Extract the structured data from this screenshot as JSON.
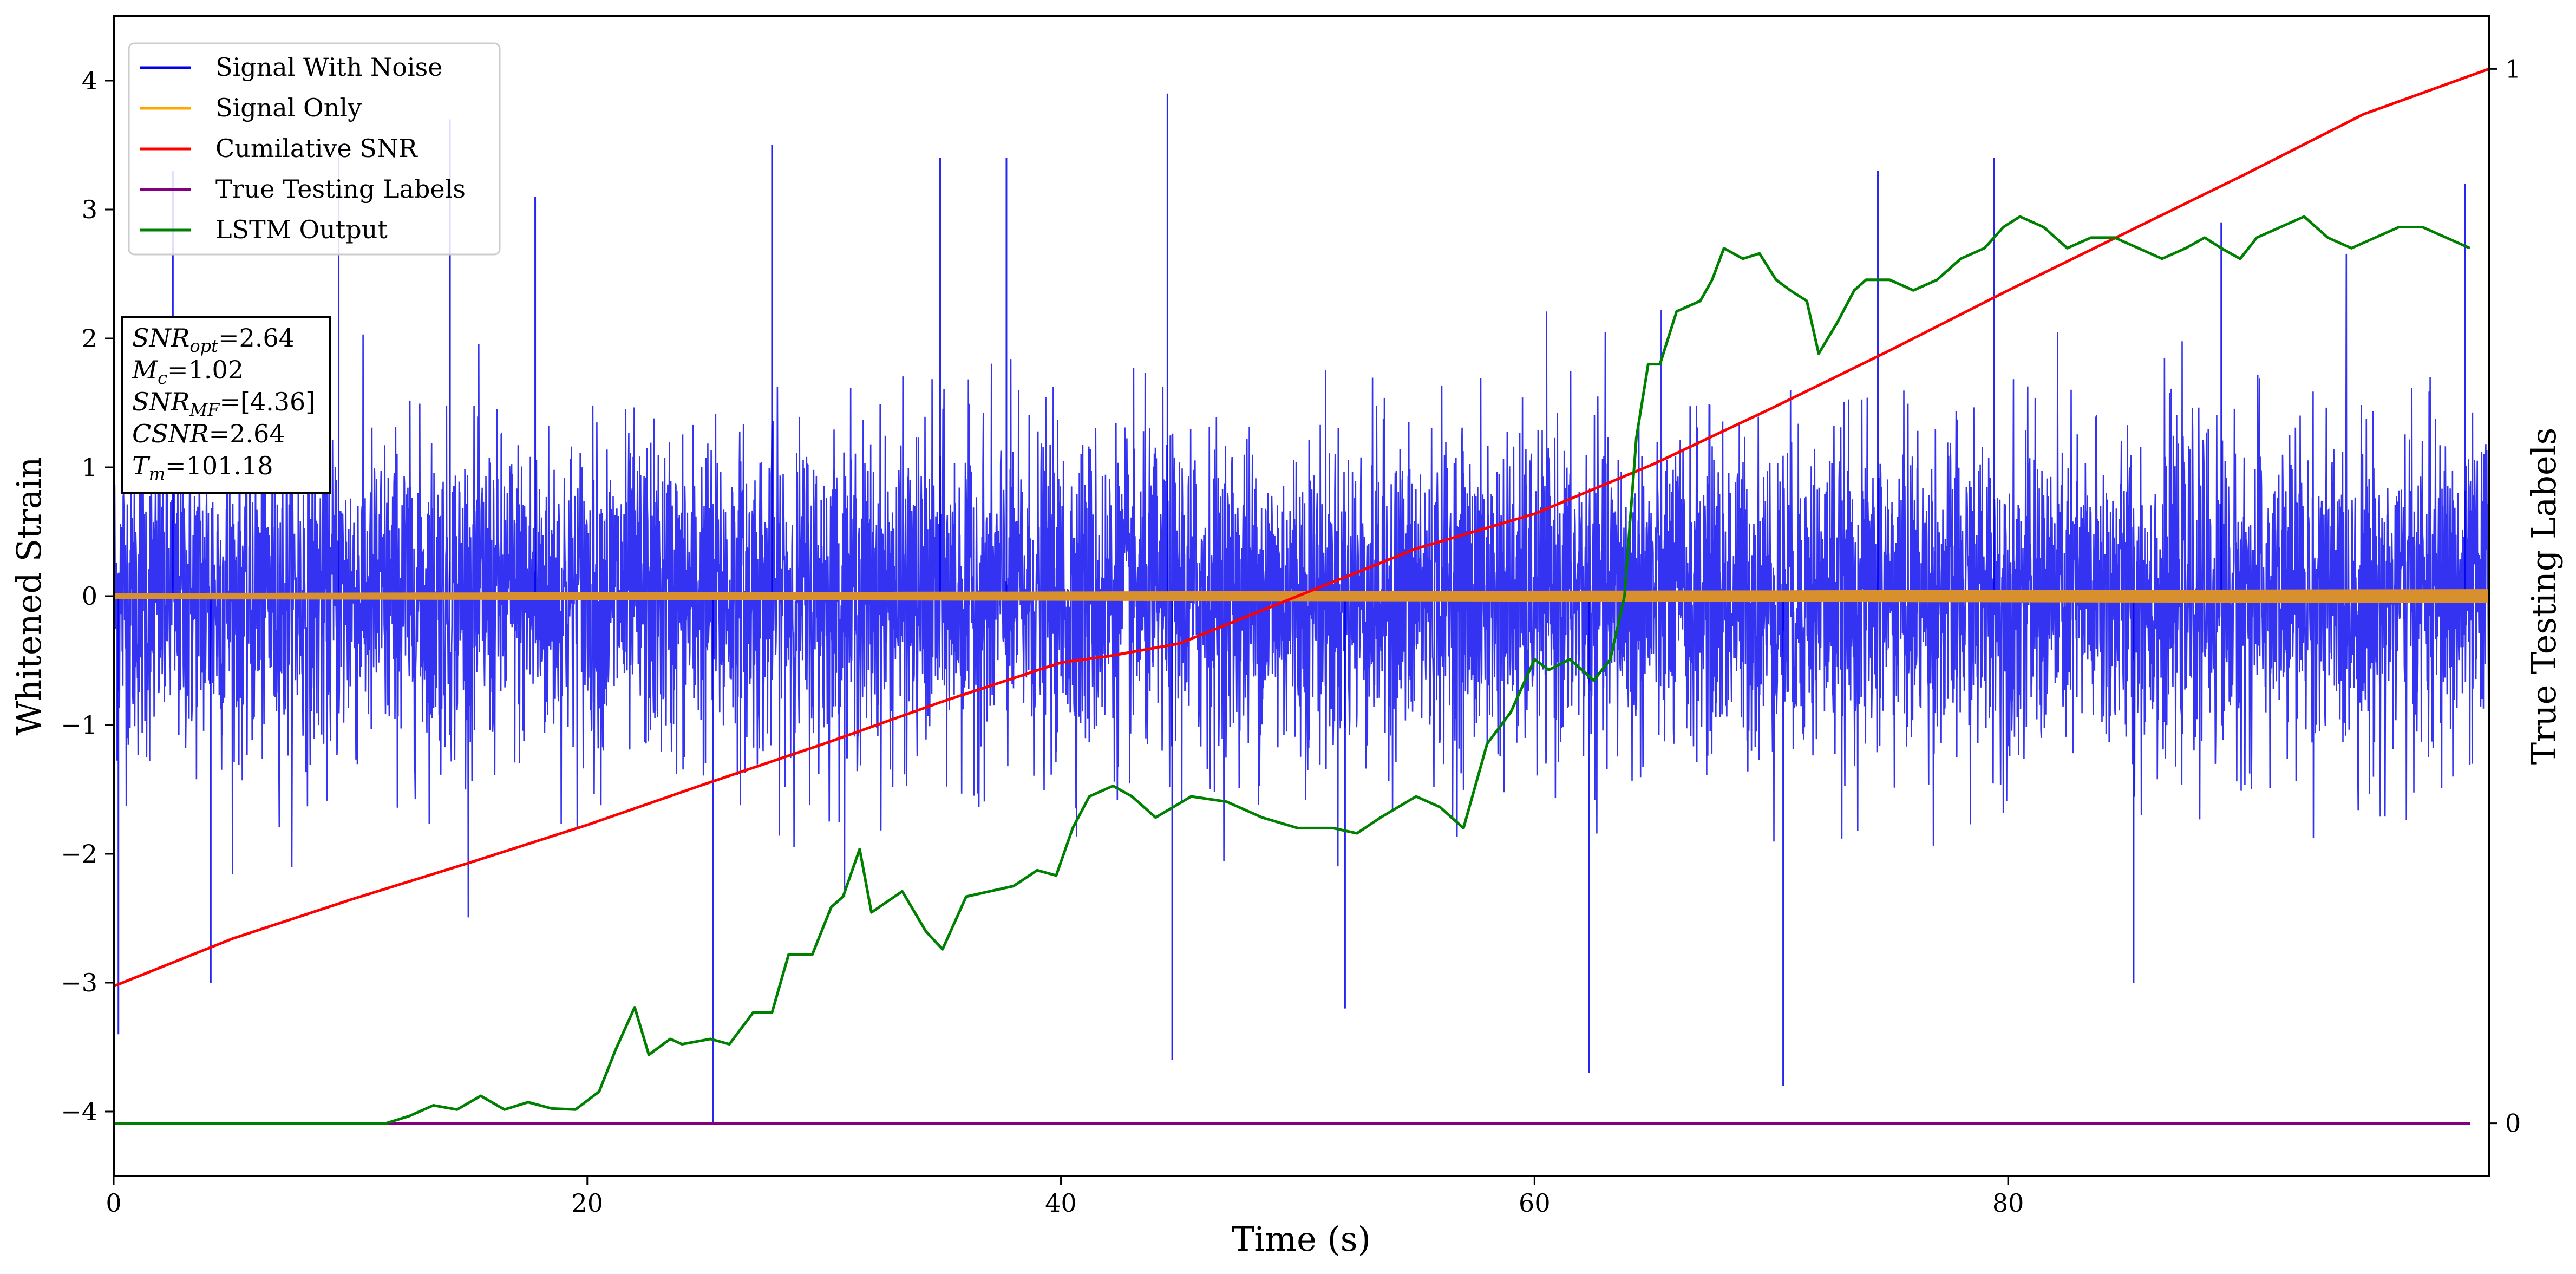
{
  "chart_data": {
    "type": "line",
    "xlabel": "Time (s)",
    "ylabel": "Whitened Strain",
    "ylabel_right": "True Testing Labels",
    "xlim": [
      0,
      100.3
    ],
    "ylim": [
      -4.5,
      4.5
    ],
    "ylim_right": [
      -0.05,
      1.05
    ],
    "x_ticks": [
      0,
      20,
      40,
      60,
      80
    ],
    "y_ticks": [
      -4,
      -3,
      -2,
      -1,
      0,
      1,
      2,
      3,
      4
    ],
    "y_ticks_right": [
      0,
      1
    ],
    "legend_position": "top-left",
    "legend": [
      {
        "label": "Signal With Noise",
        "color": "#0000ee"
      },
      {
        "label": "Signal Only",
        "color": "#ffa500"
      },
      {
        "label": "Cumilative SNR",
        "color": "#ff0000"
      },
      {
        "label": "True Testing Labels",
        "color": "#800080"
      },
      {
        "label": "LSTM Output",
        "color": "#008000"
      }
    ],
    "annotation": {
      "lines": [
        {
          "base": "SNR",
          "sub": "opt",
          "value": "=2.64"
        },
        {
          "base": "M",
          "sub": "c",
          "value": "=1.02"
        },
        {
          "base": "SNR",
          "sub": "MF",
          "value": "=[4.36]"
        },
        {
          "base": "CSNR",
          "sub": "",
          "value": "=2.64"
        },
        {
          "base": "T",
          "sub": "m",
          "value": "=101.18"
        }
      ]
    },
    "series": [
      {
        "name": "Signal With Noise",
        "axis": "left",
        "color": "#0000ee",
        "kind": "noise",
        "x_range": [
          0,
          100.3
        ],
        "envelope_typical": [
          -1.9,
          2.1
        ],
        "spikes": [
          [
            0.2,
            -3.4
          ],
          [
            2.5,
            3.3
          ],
          [
            4.1,
            -3.0
          ],
          [
            9.5,
            3.5
          ],
          [
            14.2,
            3.7
          ],
          [
            17.8,
            3.1
          ],
          [
            25.3,
            -4.1
          ],
          [
            27.8,
            3.5
          ],
          [
            34.9,
            3.4
          ],
          [
            37.7,
            3.4
          ],
          [
            44.5,
            3.9
          ],
          [
            44.7,
            -3.6
          ],
          [
            52.0,
            -3.2
          ],
          [
            62.3,
            -3.7
          ],
          [
            70.5,
            -3.8
          ],
          [
            74.5,
            3.3
          ],
          [
            79.4,
            3.4
          ],
          [
            85.3,
            -3.0
          ],
          [
            89.0,
            2.9
          ],
          [
            99.3,
            3.2
          ]
        ]
      },
      {
        "name": "Signal Only",
        "axis": "left",
        "color": "#ffa500",
        "kind": "band",
        "x_range": [
          0,
          100.3
        ],
        "amplitude_start": 0.02,
        "amplitude_end": 0.05
      },
      {
        "name": "Cumilative SNR",
        "axis": "right",
        "color": "#ff0000",
        "x": [
          0,
          5,
          10,
          15,
          20,
          25,
          30,
          35,
          40,
          42,
          45,
          50,
          55,
          60,
          65,
          70,
          75,
          80,
          85,
          90,
          95,
          100.3
        ],
        "y": [
          0.13,
          0.175,
          0.212,
          0.247,
          0.283,
          0.322,
          0.36,
          0.4,
          0.437,
          0.443,
          0.455,
          0.5,
          0.545,
          0.578,
          0.625,
          0.678,
          0.733,
          0.79,
          0.845,
          0.9,
          0.957,
          1.0
        ]
      },
      {
        "name": "True Testing Labels",
        "axis": "right",
        "color": "#800080",
        "x": [
          0,
          99.5
        ],
        "y": [
          0,
          0
        ]
      },
      {
        "name": "LSTM Output",
        "axis": "right",
        "color": "#008000",
        "x": [
          0,
          11.5,
          12.5,
          13.5,
          14.5,
          15.5,
          16.5,
          17.5,
          18.5,
          19.5,
          20.5,
          21.2,
          22.0,
          22.6,
          23.5,
          24.0,
          25.2,
          26.0,
          27.0,
          27.8,
          28.5,
          29.5,
          30.3,
          30.8,
          31.5,
          32.0,
          33.3,
          34.3,
          35.0,
          36.0,
          37.0,
          38.0,
          39.0,
          39.8,
          40.5,
          41.2,
          42.2,
          43.0,
          44.0,
          45.5,
          47.0,
          48.5,
          50.0,
          51.5,
          52.5,
          53.5,
          55.0,
          56.0,
          57.0,
          58.0,
          59.0,
          60.0,
          60.6,
          61.5,
          62.0,
          62.5,
          63.2,
          63.8,
          64.3,
          64.8,
          65.3,
          66.0,
          67.0,
          67.5,
          68.0,
          68.8,
          69.5,
          70.2,
          70.8,
          71.5,
          72.0,
          72.8,
          73.5,
          74.0,
          75.0,
          76.0,
          77.0,
          78.0,
          79.0,
          79.8,
          80.5,
          81.5,
          82.5,
          83.5,
          84.5,
          85.5,
          86.5,
          87.5,
          88.3,
          89.0,
          89.8,
          90.5,
          91.5,
          92.5,
          93.5,
          94.5,
          95.5,
          96.5,
          97.5,
          98.5,
          99.5
        ],
        "y": [
          0,
          0,
          0.007,
          0.017,
          0.013,
          0.026,
          0.013,
          0.02,
          0.014,
          0.013,
          0.03,
          0.07,
          0.11,
          0.065,
          0.08,
          0.075,
          0.08,
          0.075,
          0.105,
          0.105,
          0.16,
          0.16,
          0.205,
          0.215,
          0.26,
          0.2,
          0.22,
          0.182,
          0.165,
          0.215,
          0.22,
          0.225,
          0.24,
          0.235,
          0.28,
          0.31,
          0.32,
          0.31,
          0.29,
          0.31,
          0.305,
          0.29,
          0.28,
          0.28,
          0.275,
          0.29,
          0.31,
          0.3,
          0.28,
          0.36,
          0.39,
          0.44,
          0.43,
          0.44,
          0.43,
          0.42,
          0.44,
          0.5,
          0.65,
          0.72,
          0.72,
          0.77,
          0.78,
          0.8,
          0.83,
          0.82,
          0.825,
          0.8,
          0.79,
          0.78,
          0.73,
          0.76,
          0.79,
          0.8,
          0.8,
          0.79,
          0.8,
          0.82,
          0.83,
          0.85,
          0.86,
          0.85,
          0.83,
          0.84,
          0.84,
          0.83,
          0.82,
          0.83,
          0.84,
          0.83,
          0.82,
          0.84,
          0.85,
          0.86,
          0.84,
          0.83,
          0.84,
          0.85,
          0.85,
          0.84,
          0.83
        ]
      }
    ]
  }
}
